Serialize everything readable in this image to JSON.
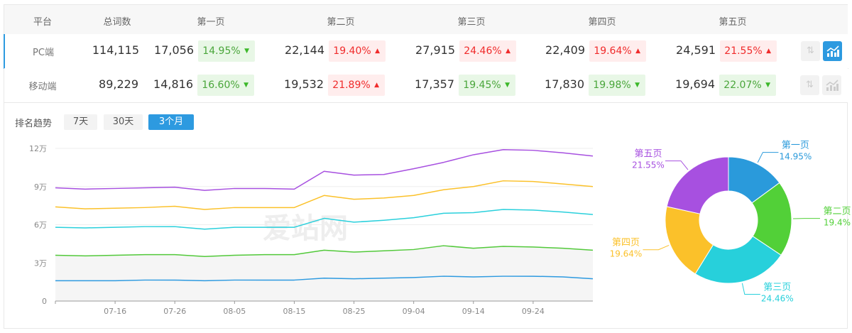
{
  "table": {
    "headers": [
      "平台",
      "总词数",
      "第一页",
      "第二页",
      "第三页",
      "第四页",
      "第五页"
    ],
    "rows": [
      {
        "platform": "PC端",
        "total": "114,115",
        "active": true,
        "pages": [
          {
            "count": "17,056",
            "pct": "14.95%",
            "dir": "down"
          },
          {
            "count": "22,144",
            "pct": "19.40%",
            "dir": "up"
          },
          {
            "count": "27,915",
            "pct": "24.46%",
            "dir": "up"
          },
          {
            "count": "22,409",
            "pct": "19.64%",
            "dir": "up"
          },
          {
            "count": "24,591",
            "pct": "21.55%",
            "dir": "up"
          }
        ],
        "actions": {
          "sort_icon": "sort-arrows-icon",
          "chart_icon": "trend-chart-icon",
          "chart_active": true
        }
      },
      {
        "platform": "移动端",
        "total": "89,229",
        "active": false,
        "pages": [
          {
            "count": "14,816",
            "pct": "16.60%",
            "dir": "down"
          },
          {
            "count": "19,532",
            "pct": "21.89%",
            "dir": "up"
          },
          {
            "count": "17,357",
            "pct": "19.45%",
            "dir": "down"
          },
          {
            "count": "17,830",
            "pct": "19.98%",
            "dir": "down"
          },
          {
            "count": "19,694",
            "pct": "22.07%",
            "dir": "down"
          }
        ],
        "actions": {
          "sort_icon": "sort-arrows-icon",
          "chart_icon": "trend-chart-icon",
          "chart_active": false
        }
      }
    ],
    "arrows": {
      "up": "▲",
      "down": "▼"
    }
  },
  "trend": {
    "label": "排名趋势",
    "ranges": [
      {
        "label": "7天",
        "active": false
      },
      {
        "label": "30天",
        "active": false
      },
      {
        "label": "3个月",
        "active": true
      }
    ],
    "watermark": "爱站网"
  },
  "colors": {
    "accent": "#2d9ae0",
    "up": "#f02b2b",
    "down": "#4aa63b"
  },
  "chart_data": [
    {
      "type": "line",
      "x": [
        "07-06",
        "07-11",
        "07-16",
        "07-21",
        "07-26",
        "07-31",
        "08-05",
        "08-10",
        "08-15",
        "08-20",
        "08-25",
        "08-30",
        "09-04",
        "09-09",
        "09-14",
        "09-19",
        "09-24",
        "09-29",
        "10-04"
      ],
      "xticks": [
        "07-16",
        "07-26",
        "08-05",
        "08-15",
        "08-25",
        "09-04",
        "09-14",
        "09-24"
      ],
      "yticks": [
        "0",
        "3万",
        "6万",
        "9万",
        "12万"
      ],
      "ylim": [
        0,
        120000
      ],
      "grid": true,
      "series": [
        {
          "color": "#2d9ae0",
          "values": [
            16000,
            16000,
            16000,
            16500,
            16500,
            16000,
            16500,
            16500,
            16500,
            18000,
            17500,
            18000,
            18500,
            19500,
            19000,
            19500,
            19500,
            19000,
            17500
          ]
        },
        {
          "color": "#52c93a",
          "fill": "#f5f5f5",
          "values": [
            36000,
            35500,
            36000,
            36500,
            36500,
            35000,
            36000,
            36500,
            36500,
            40000,
            38500,
            39500,
            40500,
            43500,
            41500,
            43000,
            42500,
            41500,
            40000
          ]
        },
        {
          "color": "#2ad0dc",
          "values": [
            58000,
            57500,
            58000,
            58500,
            58500,
            56500,
            58000,
            58000,
            58000,
            65000,
            62000,
            63500,
            65500,
            69000,
            69500,
            72000,
            71500,
            70000,
            68000
          ]
        },
        {
          "color": "#fbc12a",
          "values": [
            74000,
            72500,
            73000,
            73500,
            74500,
            72000,
            73500,
            73500,
            73500,
            83000,
            80000,
            81000,
            83000,
            87500,
            90000,
            94500,
            94000,
            92000,
            90000
          ]
        },
        {
          "color": "#a750e0",
          "values": [
            89000,
            88000,
            88500,
            89000,
            89500,
            87000,
            88500,
            88500,
            88000,
            102000,
            99000,
            99500,
            104000,
            109000,
            115000,
            119000,
            118500,
            116500,
            114000
          ]
        }
      ]
    },
    {
      "type": "pie",
      "donut": true,
      "slices": [
        {
          "label": "第一页",
          "value": "14.95%",
          "pct": 14.95,
          "color": "#2a9adb"
        },
        {
          "label": "第二页",
          "value": "19.4%",
          "pct": 19.4,
          "color": "#52d038"
        },
        {
          "label": "第三页",
          "value": "24.46%",
          "pct": 24.46,
          "color": "#27d0db"
        },
        {
          "label": "第四页",
          "value": "19.64%",
          "pct": 19.64,
          "color": "#fbc12a"
        },
        {
          "label": "第五页",
          "value": "21.55%",
          "pct": 21.55,
          "color": "#a750e0"
        }
      ]
    }
  ]
}
